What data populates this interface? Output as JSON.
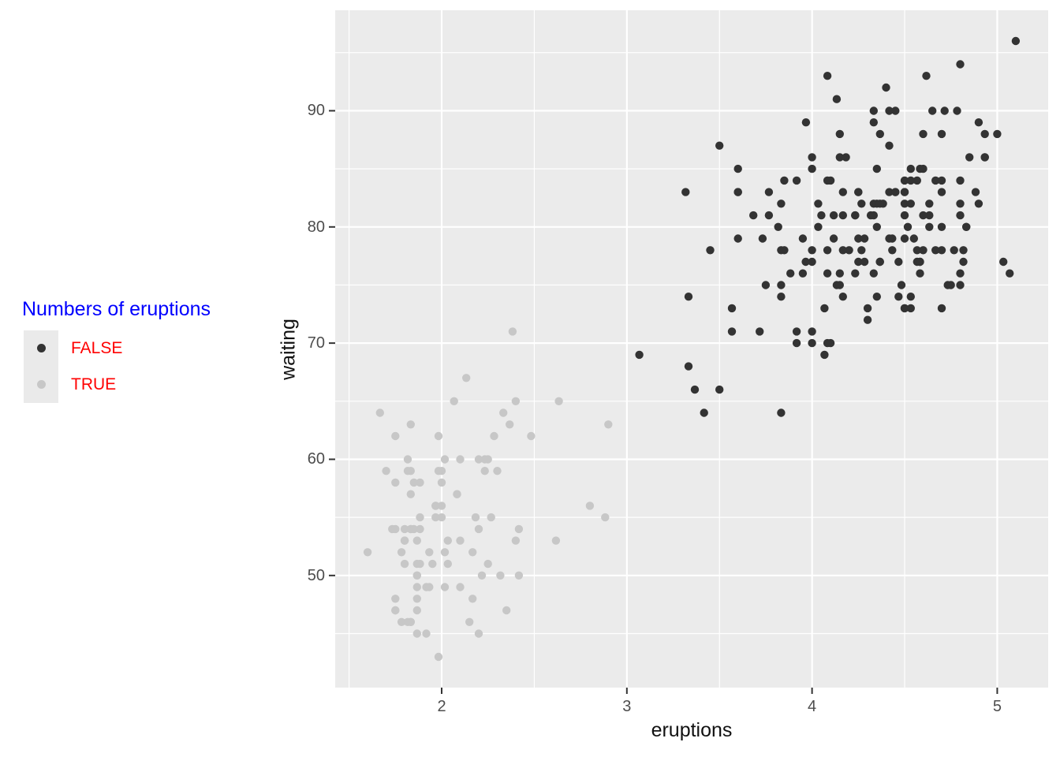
{
  "legend": {
    "title": "Numbers of eruptions",
    "title_color": "#0000FF",
    "label_color": "#FF0000",
    "key_fill": "#EAEAEA",
    "items": [
      {
        "label": "FALSE",
        "color": "#333333"
      },
      {
        "label": "TRUE",
        "color": "#C7C7C7"
      }
    ]
  },
  "chart_data": {
    "type": "scatter",
    "xlabel": "eruptions",
    "ylabel": "waiting",
    "xlim": [
      1.425,
      5.275
    ],
    "ylim": [
      40.35,
      98.65
    ],
    "x_ticks": [
      2,
      3,
      4,
      5
    ],
    "y_ticks": [
      50,
      60,
      70,
      80,
      90
    ],
    "x_minor": [
      1.5,
      2.5,
      3.5,
      4.5
    ],
    "y_minor": [
      45,
      55,
      65,
      75,
      85,
      95
    ],
    "panel_bg": "#EBEBEB",
    "grid_color": "#FFFFFF",
    "tick_mark_color": "#333333",
    "tick_label_color": "#4D4D4D",
    "point_radius": 5.2,
    "legend_position": "left",
    "grid": "on",
    "series": [
      {
        "name": "FALSE",
        "color": "#333333",
        "points": [
          [
            3.6,
            79
          ],
          [
            3.333,
            74
          ],
          [
            4.533,
            85
          ],
          [
            4.7,
            88
          ],
          [
            3.6,
            85
          ],
          [
            4.35,
            85
          ],
          [
            3.917,
            84
          ],
          [
            4.2,
            78
          ],
          [
            4.7,
            83
          ],
          [
            4.8,
            84
          ],
          [
            4.25,
            79
          ],
          [
            3.45,
            78
          ],
          [
            3.067,
            69
          ],
          [
            4.533,
            74
          ],
          [
            3.6,
            83
          ],
          [
            4.083,
            76
          ],
          [
            3.85,
            78
          ],
          [
            4.433,
            79
          ],
          [
            4.3,
            73
          ],
          [
            4.467,
            77
          ],
          [
            3.367,
            66
          ],
          [
            4.033,
            80
          ],
          [
            3.833,
            74
          ],
          [
            4.833,
            80
          ],
          [
            4.783,
            90
          ],
          [
            4.35,
            80
          ],
          [
            4.567,
            84
          ],
          [
            4.533,
            73
          ],
          [
            3.317,
            83
          ],
          [
            3.833,
            64
          ],
          [
            4.633,
            82
          ],
          [
            4.8,
            75
          ],
          [
            4.716,
            90
          ],
          [
            4.833,
            80
          ],
          [
            4.883,
            83
          ],
          [
            3.717,
            71
          ],
          [
            4.567,
            77
          ],
          [
            4.317,
            81
          ],
          [
            4.5,
            84
          ],
          [
            4.8,
            82
          ],
          [
            4.4,
            92
          ],
          [
            4.167,
            78
          ],
          [
            4.7,
            78
          ],
          [
            4.7,
            73
          ],
          [
            4.033,
            82
          ],
          [
            4.5,
            79
          ],
          [
            4.0,
            71
          ],
          [
            5.067,
            76
          ],
          [
            4.567,
            78
          ],
          [
            3.883,
            76
          ],
          [
            3.6,
            83
          ],
          [
            4.133,
            75
          ],
          [
            4.333,
            82
          ],
          [
            4.1,
            70
          ],
          [
            4.067,
            73
          ],
          [
            4.933,
            88
          ],
          [
            3.95,
            76
          ],
          [
            4.517,
            80
          ],
          [
            4.0,
            86
          ],
          [
            4.333,
            90
          ],
          [
            4.817,
            78
          ],
          [
            4.3,
            72
          ],
          [
            4.667,
            84
          ],
          [
            3.75,
            75
          ],
          [
            4.9,
            82
          ],
          [
            4.367,
            88
          ],
          [
            4.5,
            83
          ],
          [
            4.05,
            81
          ],
          [
            4.7,
            84
          ],
          [
            4.85,
            86
          ],
          [
            3.683,
            81
          ],
          [
            4.733,
            75
          ],
          [
            4.9,
            89
          ],
          [
            4.417,
            79
          ],
          [
            4.633,
            81
          ],
          [
            4.6,
            85
          ],
          [
            4.417,
            87
          ],
          [
            4.067,
            69
          ],
          [
            4.25,
            77
          ],
          [
            4.6,
            88
          ],
          [
            3.767,
            81
          ],
          [
            4.5,
            82
          ],
          [
            4.65,
            90
          ],
          [
            4.167,
            83
          ],
          [
            4.333,
            89
          ],
          [
            4.383,
            82
          ],
          [
            4.933,
            86
          ],
          [
            3.733,
            79
          ],
          [
            4.233,
            81
          ],
          [
            4.533,
            82
          ],
          [
            4.817,
            77
          ],
          [
            4.333,
            76
          ],
          [
            4.633,
            80
          ],
          [
            5.1,
            96
          ],
          [
            5.033,
            77
          ],
          [
            4.0,
            77
          ],
          [
            4.6,
            81
          ],
          [
            3.567,
            71
          ],
          [
            4.0,
            70
          ],
          [
            4.5,
            81
          ],
          [
            4.083,
            93
          ],
          [
            3.967,
            89
          ],
          [
            4.15,
            86
          ],
          [
            3.833,
            78
          ],
          [
            3.5,
            66
          ],
          [
            4.583,
            76
          ],
          [
            5.0,
            88
          ],
          [
            4.617,
            93
          ],
          [
            4.583,
            77
          ],
          [
            3.333,
            68
          ],
          [
            4.167,
            81
          ],
          [
            4.333,
            81
          ],
          [
            4.5,
            73
          ],
          [
            4.0,
            85
          ],
          [
            4.167,
            74
          ],
          [
            4.583,
            77
          ],
          [
            4.25,
            83
          ],
          [
            3.767,
            83
          ],
          [
            4.433,
            78
          ],
          [
            4.083,
            84
          ],
          [
            4.417,
            83
          ],
          [
            4.8,
            81
          ],
          [
            4.8,
            76
          ],
          [
            4.1,
            84
          ],
          [
            3.966,
            77
          ],
          [
            4.233,
            81
          ],
          [
            3.5,
            87
          ],
          [
            4.366,
            77
          ],
          [
            4.667,
            78
          ],
          [
            4.35,
            82
          ],
          [
            4.133,
            91
          ],
          [
            4.6,
            78
          ],
          [
            4.367,
            77
          ],
          [
            3.85,
            84
          ],
          [
            4.5,
            83
          ],
          [
            4.7,
            80
          ],
          [
            3.833,
            75
          ],
          [
            3.417,
            64
          ],
          [
            4.233,
            76
          ],
          [
            4.8,
            94
          ],
          [
            4.15,
            76
          ],
          [
            4.267,
            82
          ],
          [
            4.483,
            75
          ],
          [
            4.0,
            78
          ],
          [
            4.117,
            79
          ],
          [
            4.083,
            78
          ],
          [
            4.267,
            78
          ],
          [
            3.917,
            70
          ],
          [
            4.55,
            79
          ],
          [
            4.083,
            70
          ],
          [
            4.183,
            86
          ],
          [
            4.45,
            90
          ],
          [
            4.283,
            77
          ],
          [
            3.95,
            79
          ],
          [
            4.15,
            75
          ],
          [
            4.933,
            86
          ],
          [
            4.583,
            85
          ],
          [
            3.833,
            82
          ],
          [
            4.367,
            82
          ],
          [
            4.35,
            74
          ],
          [
            4.45,
            83
          ],
          [
            3.567,
            73
          ],
          [
            4.5,
            73
          ],
          [
            4.15,
            88
          ],
          [
            3.817,
            80
          ],
          [
            3.917,
            71
          ],
          [
            4.45,
            83
          ],
          [
            4.283,
            79
          ],
          [
            4.767,
            78
          ],
          [
            4.533,
            84
          ],
          [
            4.25,
            83
          ],
          [
            4.75,
            75
          ],
          [
            4.117,
            81
          ],
          [
            4.417,
            90
          ],
          [
            4.467,
            74
          ]
        ]
      },
      {
        "name": "TRUE",
        "color": "#C7C7C7",
        "points": [
          [
            1.8,
            54
          ],
          [
            2.283,
            62
          ],
          [
            2.883,
            55
          ],
          [
            1.95,
            51
          ],
          [
            1.833,
            54
          ],
          [
            1.75,
            47
          ],
          [
            2.167,
            52
          ],
          [
            1.75,
            62
          ],
          [
            1.6,
            52
          ],
          [
            1.8,
            51
          ],
          [
            1.75,
            47
          ],
          [
            1.967,
            55
          ],
          [
            2.017,
            52
          ],
          [
            1.867,
            48
          ],
          [
            1.833,
            59
          ],
          [
            1.883,
            58
          ],
          [
            1.75,
            58
          ],
          [
            2.1,
            53
          ],
          [
            2.0,
            59
          ],
          [
            1.833,
            54
          ],
          [
            1.733,
            54
          ],
          [
            1.667,
            64
          ],
          [
            2.233,
            59
          ],
          [
            1.75,
            48
          ],
          [
            1.817,
            60
          ],
          [
            2.067,
            65
          ],
          [
            1.967,
            56
          ],
          [
            1.983,
            62
          ],
          [
            2.017,
            60
          ],
          [
            2.633,
            65
          ],
          [
            2.167,
            48
          ],
          [
            2.2,
            60
          ],
          [
            1.867,
            50
          ],
          [
            1.833,
            63
          ],
          [
            1.867,
            51
          ],
          [
            2.483,
            62
          ],
          [
            2.1,
            49
          ],
          [
            1.867,
            47
          ],
          [
            1.783,
            52
          ],
          [
            2.3,
            59
          ],
          [
            1.7,
            59
          ],
          [
            2.317,
            50
          ],
          [
            1.817,
            59
          ],
          [
            2.617,
            53
          ],
          [
            1.967,
            56
          ],
          [
            1.917,
            45
          ],
          [
            2.267,
            55
          ],
          [
            1.867,
            45
          ],
          [
            2.8,
            56
          ],
          [
            1.833,
            46
          ],
          [
            1.883,
            51
          ],
          [
            2.033,
            53
          ],
          [
            2.233,
            60
          ],
          [
            1.983,
            59
          ],
          [
            2.017,
            49
          ],
          [
            1.8,
            53
          ],
          [
            2.4,
            65
          ],
          [
            1.8,
            53
          ],
          [
            2.2,
            45
          ],
          [
            2.0,
            58
          ],
          [
            2.367,
            63
          ],
          [
            1.933,
            52
          ],
          [
            1.917,
            49
          ],
          [
            2.083,
            57
          ],
          [
            2.417,
            50
          ],
          [
            1.883,
            55
          ],
          [
            2.033,
            51
          ],
          [
            1.833,
            46
          ],
          [
            2.183,
            55
          ],
          [
            1.833,
            57
          ],
          [
            2.25,
            51
          ],
          [
            2.1,
            60
          ],
          [
            1.867,
            53
          ],
          [
            1.783,
            46
          ],
          [
            1.933,
            49
          ],
          [
            2.383,
            71
          ],
          [
            1.867,
            49
          ],
          [
            2.4,
            53
          ],
          [
            2.0,
            55
          ],
          [
            1.867,
            50
          ],
          [
            1.75,
            54
          ],
          [
            2.417,
            54
          ],
          [
            2.217,
            50
          ],
          [
            1.883,
            54
          ],
          [
            1.85,
            54
          ],
          [
            2.333,
            64
          ],
          [
            2.35,
            47
          ],
          [
            2.9,
            63
          ],
          [
            2.083,
            57
          ],
          [
            2.133,
            67
          ],
          [
            2.2,
            54
          ],
          [
            2.0,
            56
          ],
          [
            1.85,
            58
          ],
          [
            1.983,
            43
          ],
          [
            2.25,
            60
          ],
          [
            2.15,
            46
          ],
          [
            1.817,
            46
          ]
        ]
      }
    ]
  }
}
